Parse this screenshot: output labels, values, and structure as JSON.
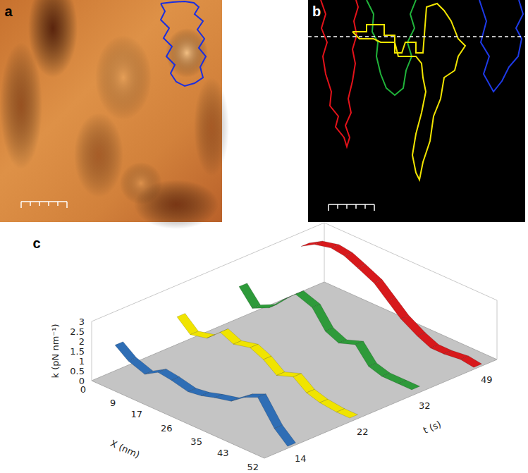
{
  "panels": [
    {
      "label": "a"
    },
    {
      "label": "b"
    },
    {
      "label": "c"
    }
  ],
  "chart_data": {
    "type": "ribbon3d",
    "x_label": "X (nm)",
    "y_label": "t (s)",
    "z_label": "k (pN nm⁻¹)",
    "x": [
      0,
      4,
      9,
      13,
      17,
      22,
      26,
      30,
      35,
      39,
      43,
      48,
      52
    ],
    "xlim": [
      0,
      52
    ],
    "xticks": [
      0,
      9,
      17,
      26,
      35,
      43,
      52
    ],
    "t": [
      14,
      22,
      32,
      49
    ],
    "zlim": [
      0,
      3
    ],
    "zticks": [
      0,
      0.5,
      1,
      1.5,
      2,
      2.5,
      3
    ],
    "series": [
      {
        "color": "#2f6eb5",
        "values": [
          1.3,
          0.8,
          0.5,
          0.9,
          0.8,
          0.6,
          0.7,
          0.9,
          1.1,
          1.6,
          1.9,
          0.7,
          0.1
        ]
      },
      {
        "color": "#f0e400",
        "values": [
          1.4,
          0.8,
          1.0,
          1.6,
          1.3,
          1.5,
          1.2,
          0.7,
          1.0,
          0.5,
          0.3,
          0.2,
          0.2
        ]
      },
      {
        "color": "#2e9a3a",
        "values": [
          1.6,
          0.8,
          1.2,
          1.9,
          2.5,
          2.2,
          1.3,
          1.0,
          1.3,
          0.5,
          0.3,
          0.3,
          0.3
        ]
      },
      {
        "color": "#d7191c",
        "values": [
          2.3,
          2.7,
          2.9,
          2.8,
          2.5,
          2.1,
          1.5,
          0.9,
          0.4,
          0.1,
          0.1,
          0.2,
          0.1
        ]
      }
    ]
  }
}
